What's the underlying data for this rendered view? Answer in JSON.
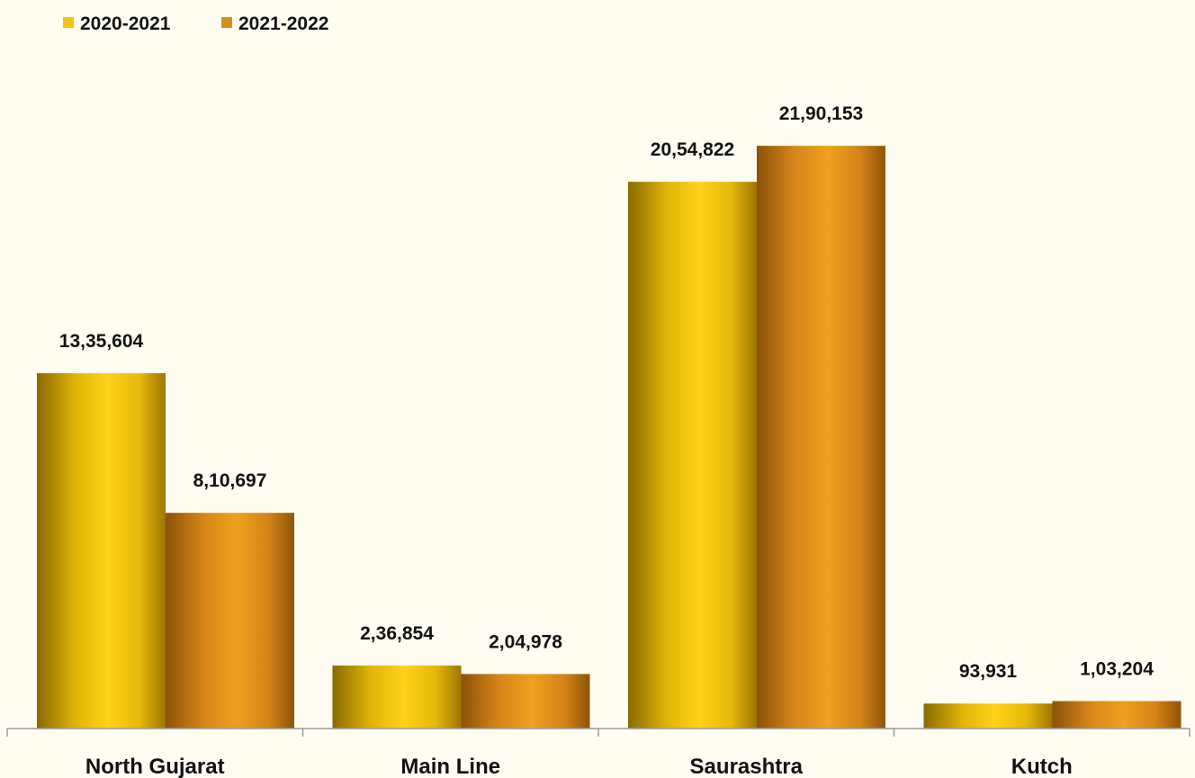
{
  "chart_data": {
    "type": "bar",
    "categories": [
      "North Gujarat",
      "Main Line",
      "Saurashtra",
      "Kutch"
    ],
    "series": [
      {
        "name": "2020-2021",
        "values": [
          1335604,
          236854,
          2054822,
          93931
        ],
        "labels": [
          "13,35,604",
          "2,36,854",
          "20,54,822",
          "93,931"
        ],
        "color": "#f2c40f"
      },
      {
        "name": "2021-2022",
        "values": [
          810697,
          204978,
          2190153,
          103204
        ],
        "labels": [
          "8,10,697",
          "2,04,978",
          "21,90,153",
          "1,03,204"
        ],
        "color": "#d98e1a"
      }
    ],
    "ylim": [
      0,
      2390000
    ],
    "legend_position": "top-left",
    "grid": false
  }
}
